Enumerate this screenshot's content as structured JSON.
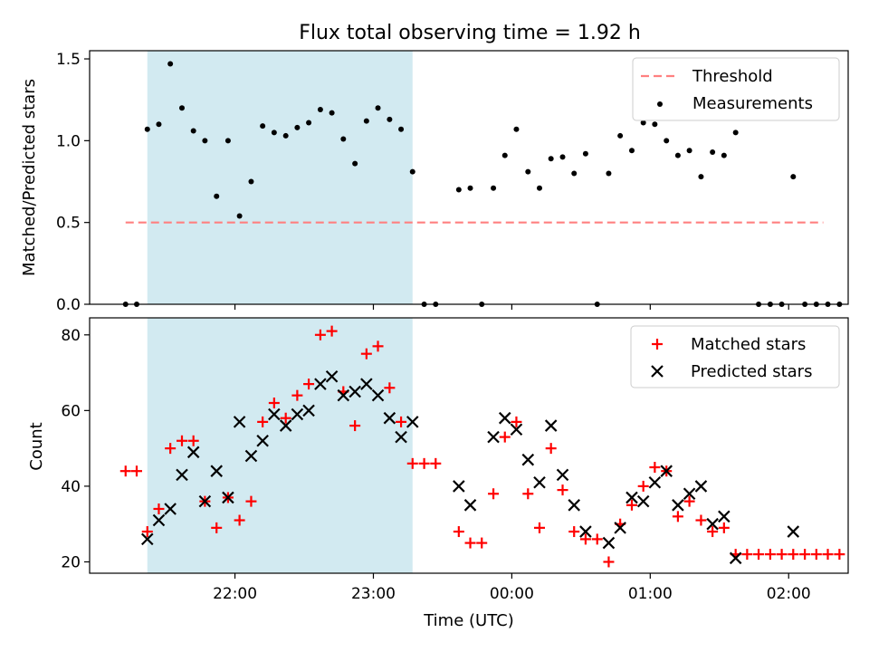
{
  "chart_data": [
    {
      "type": "scatter",
      "title": "Flux total observing time = 1.92 h",
      "xlabel": "",
      "ylabel": "Matched/Predicted stars",
      "ylim": [
        0,
        1.55
      ],
      "xlim": [
        -2.05,
        3.43
      ],
      "yticks": [
        "0.0",
        "0.5",
        "1.0",
        "1.5"
      ],
      "ytick_values": [
        0,
        0.5,
        1.0,
        1.5
      ],
      "shaded_region": [
        -1.633,
        0.283
      ],
      "shaded_color": "#add8e6",
      "threshold": {
        "name": "Threshold",
        "value": 0.5,
        "x_range": [
          -1.79,
          3.25
        ],
        "color": "#ff8080"
      },
      "series": [
        {
          "name": "Measurements",
          "color": "#000000",
          "points": [
            [
              -1.79,
              0.0
            ],
            [
              -1.71,
              0.0
            ],
            [
              -1.633,
              1.07
            ],
            [
              -1.55,
              1.1
            ],
            [
              -1.467,
              1.47
            ],
            [
              -1.383,
              1.2
            ],
            [
              -1.3,
              1.06
            ],
            [
              -1.217,
              1.0
            ],
            [
              -1.133,
              0.66
            ],
            [
              -1.05,
              1.0
            ],
            [
              -0.967,
              0.54
            ],
            [
              -0.883,
              0.75
            ],
            [
              -0.8,
              1.09
            ],
            [
              -0.717,
              1.05
            ],
            [
              -0.633,
              1.03
            ],
            [
              -0.55,
              1.08
            ],
            [
              -0.467,
              1.11
            ],
            [
              -0.383,
              1.19
            ],
            [
              -0.3,
              1.17
            ],
            [
              -0.217,
              1.01
            ],
            [
              -0.133,
              0.86
            ],
            [
              -0.05,
              1.12
            ],
            [
              0.033,
              1.2
            ],
            [
              0.117,
              1.13
            ],
            [
              0.2,
              1.07
            ],
            [
              0.283,
              0.81
            ],
            [
              0.367,
              0.0
            ],
            [
              0.45,
              0.0
            ],
            [
              0.617,
              0.7
            ],
            [
              0.7,
              0.71
            ],
            [
              0.783,
              0.0
            ],
            [
              0.867,
              0.71
            ],
            [
              0.95,
              0.91
            ],
            [
              1.033,
              1.07
            ],
            [
              1.117,
              0.81
            ],
            [
              1.2,
              0.71
            ],
            [
              1.283,
              0.89
            ],
            [
              1.367,
              0.9
            ],
            [
              1.45,
              0.8
            ],
            [
              1.533,
              0.92
            ],
            [
              1.617,
              0.0
            ],
            [
              1.7,
              0.8
            ],
            [
              1.783,
              1.03
            ],
            [
              1.867,
              0.94
            ],
            [
              1.95,
              1.11
            ],
            [
              2.033,
              1.1
            ],
            [
              2.117,
              1.0
            ],
            [
              2.2,
              0.91
            ],
            [
              2.283,
              0.94
            ],
            [
              2.367,
              0.78
            ],
            [
              2.45,
              0.93
            ],
            [
              2.533,
              0.91
            ],
            [
              2.617,
              1.05
            ],
            [
              2.783,
              0.0
            ],
            [
              2.867,
              0.0
            ],
            [
              2.95,
              0.0
            ],
            [
              3.033,
              0.78
            ],
            [
              3.117,
              0.0
            ],
            [
              3.2,
              0.0
            ],
            [
              3.283,
              0.0
            ],
            [
              3.367,
              0.0
            ]
          ]
        }
      ],
      "legend": [
        "Threshold",
        "Measurements"
      ],
      "legend_position": "top-right",
      "grid": false
    },
    {
      "type": "scatter",
      "title": "",
      "xlabel": "Time (UTC)",
      "ylabel": "Count",
      "ylim": [
        17,
        84.5
      ],
      "xlim": [
        -2.05,
        3.43
      ],
      "yticks": [
        "20",
        "40",
        "60",
        "80"
      ],
      "ytick_values": [
        20,
        40,
        60,
        80
      ],
      "xticks": [
        "22:00",
        "23:00",
        "00:00",
        "01:00",
        "02:00"
      ],
      "xtick_values": [
        -1,
        0,
        1,
        2,
        3
      ],
      "shaded_region": [
        -1.633,
        0.283
      ],
      "shaded_color": "#add8e6",
      "series": [
        {
          "name": "Matched stars",
          "color": "#ff0000",
          "marker": "plus",
          "points": [
            [
              -1.79,
              44
            ],
            [
              -1.71,
              44
            ],
            [
              -1.633,
              28
            ],
            [
              -1.55,
              34
            ],
            [
              -1.467,
              50
            ],
            [
              -1.383,
              52
            ],
            [
              -1.3,
              52
            ],
            [
              -1.217,
              36
            ],
            [
              -1.133,
              29
            ],
            [
              -1.05,
              37
            ],
            [
              -0.967,
              31
            ],
            [
              -0.883,
              36
            ],
            [
              -0.8,
              57
            ],
            [
              -0.717,
              62
            ],
            [
              -0.633,
              58
            ],
            [
              -0.55,
              64
            ],
            [
              -0.467,
              67
            ],
            [
              -0.383,
              80
            ],
            [
              -0.3,
              81
            ],
            [
              -0.217,
              65
            ],
            [
              -0.133,
              56
            ],
            [
              -0.05,
              75
            ],
            [
              0.033,
              77
            ],
            [
              0.117,
              66
            ],
            [
              0.2,
              57
            ],
            [
              0.283,
              46
            ],
            [
              0.367,
              46
            ],
            [
              0.45,
              46
            ],
            [
              0.617,
              28
            ],
            [
              0.7,
              25
            ],
            [
              0.783,
              25
            ],
            [
              0.867,
              38
            ],
            [
              0.95,
              53
            ],
            [
              1.033,
              57
            ],
            [
              1.117,
              38
            ],
            [
              1.2,
              29
            ],
            [
              1.283,
              50
            ],
            [
              1.367,
              39
            ],
            [
              1.45,
              28
            ],
            [
              1.533,
              26
            ],
            [
              1.617,
              26
            ],
            [
              1.7,
              20
            ],
            [
              1.783,
              30
            ],
            [
              1.867,
              35
            ],
            [
              1.95,
              40
            ],
            [
              2.033,
              45
            ],
            [
              2.117,
              44
            ],
            [
              2.2,
              32
            ],
            [
              2.283,
              36
            ],
            [
              2.367,
              31
            ],
            [
              2.45,
              28
            ],
            [
              2.533,
              29
            ],
            [
              2.617,
              22
            ],
            [
              2.7,
              22
            ],
            [
              2.783,
              22
            ],
            [
              2.867,
              22
            ],
            [
              2.95,
              22
            ],
            [
              3.033,
              22
            ],
            [
              3.117,
              22
            ],
            [
              3.2,
              22
            ],
            [
              3.283,
              22
            ],
            [
              3.367,
              22
            ]
          ]
        },
        {
          "name": "Predicted stars",
          "color": "#000000",
          "marker": "x",
          "points": [
            [
              -1.633,
              26
            ],
            [
              -1.55,
              31
            ],
            [
              -1.467,
              34
            ],
            [
              -1.383,
              43
            ],
            [
              -1.3,
              49
            ],
            [
              -1.217,
              36
            ],
            [
              -1.133,
              44
            ],
            [
              -1.05,
              37
            ],
            [
              -0.967,
              57
            ],
            [
              -0.883,
              48
            ],
            [
              -0.8,
              52
            ],
            [
              -0.717,
              59
            ],
            [
              -0.633,
              56
            ],
            [
              -0.55,
              59
            ],
            [
              -0.467,
              60
            ],
            [
              -0.383,
              67
            ],
            [
              -0.3,
              69
            ],
            [
              -0.217,
              64
            ],
            [
              -0.133,
              65
            ],
            [
              -0.05,
              67
            ],
            [
              0.033,
              64
            ],
            [
              0.117,
              58
            ],
            [
              0.2,
              53
            ],
            [
              0.283,
              57
            ],
            [
              0.617,
              40
            ],
            [
              0.7,
              35
            ],
            [
              0.867,
              53
            ],
            [
              0.95,
              58
            ],
            [
              1.033,
              55
            ],
            [
              1.117,
              47
            ],
            [
              1.2,
              41
            ],
            [
              1.283,
              56
            ],
            [
              1.367,
              43
            ],
            [
              1.45,
              35
            ],
            [
              1.533,
              28
            ],
            [
              1.7,
              25
            ],
            [
              1.783,
              29
            ],
            [
              1.867,
              37
            ],
            [
              1.95,
              36
            ],
            [
              2.033,
              41
            ],
            [
              2.117,
              44
            ],
            [
              2.2,
              35
            ],
            [
              2.283,
              38
            ],
            [
              2.367,
              40
            ],
            [
              2.45,
              30
            ],
            [
              2.533,
              32
            ],
            [
              2.617,
              21
            ],
            [
              3.033,
              28
            ]
          ]
        }
      ],
      "legend": [
        "Matched stars",
        "Predicted stars"
      ],
      "legend_position": "top-right",
      "grid": false
    }
  ]
}
